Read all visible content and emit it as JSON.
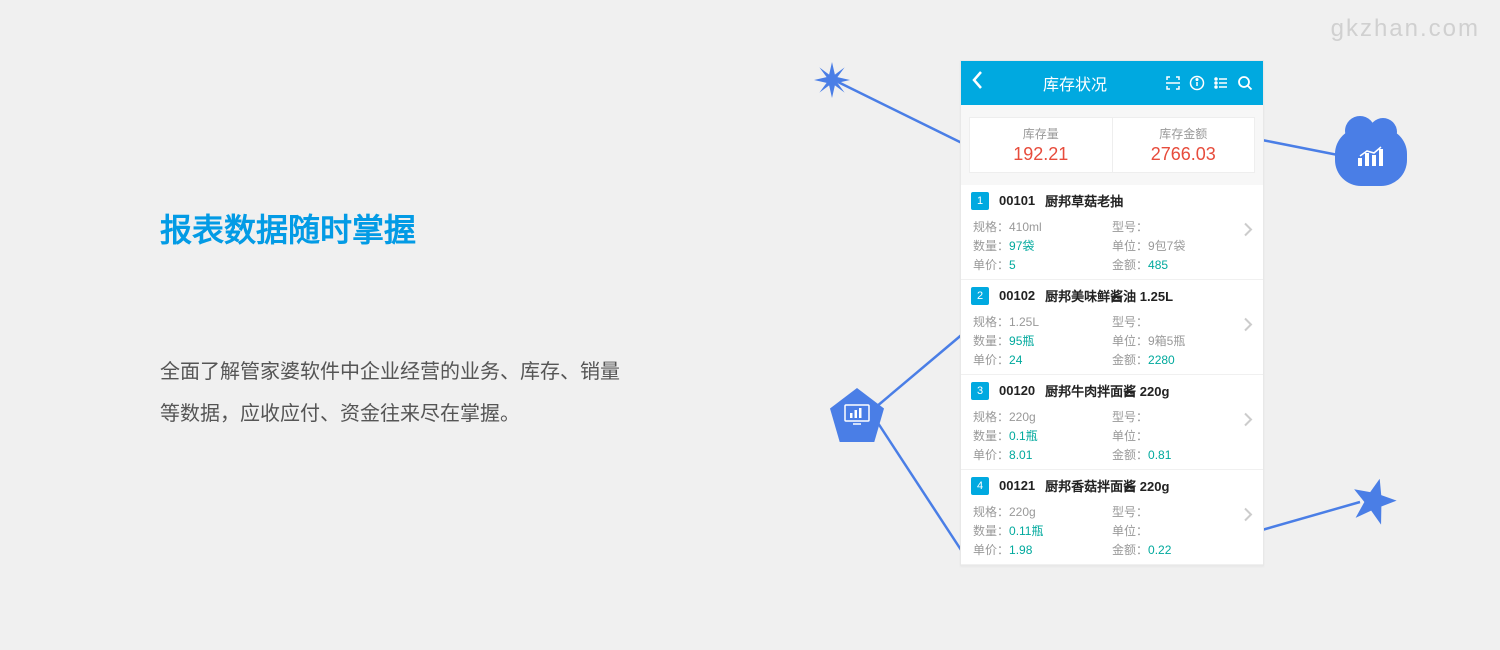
{
  "watermark": "gkzhan.com",
  "headline": "报表数据随时掌握",
  "description": "全面了解管家婆软件中企业经营的业务、库存、销量等数据，应收应付、资金往来尽在掌握。",
  "colors": {
    "accent_blue": "#00a9e0",
    "deco_blue": "#4a7ee6",
    "value_red": "#e74c3c",
    "value_teal": "#00a99d",
    "bg": "#f0f0f0"
  },
  "phone": {
    "title": "库存状况",
    "header_icons": [
      "scan-icon",
      "info-icon",
      "list-icon",
      "search-icon"
    ],
    "stats": [
      {
        "label": "库存量",
        "value": "192.21"
      },
      {
        "label": "库存金额",
        "value": "2766.03"
      }
    ],
    "field_labels": {
      "spec": "规格：",
      "model": "型号：",
      "qty": "数量：",
      "unit": "单位：",
      "price": "单价：",
      "amount": "金额："
    },
    "items": [
      {
        "num": "1",
        "code": "00101",
        "name": "厨邦草菇老抽",
        "spec": "410ml",
        "model": "",
        "qty": "97袋",
        "unit": "9包7袋",
        "price": "5",
        "amount": "485"
      },
      {
        "num": "2",
        "code": "00102",
        "name": "厨邦美味鲜酱油 1.25L",
        "spec": "1.25L",
        "model": "",
        "qty": "95瓶",
        "unit": "9箱5瓶",
        "price": "24",
        "amount": "2280"
      },
      {
        "num": "3",
        "code": "00120",
        "name": "厨邦牛肉拌面酱 220g",
        "spec": "220g",
        "model": "",
        "qty": "0.1瓶",
        "unit": "",
        "price": "8.01",
        "amount": "0.81"
      },
      {
        "num": "4",
        "code": "00121",
        "name": "厨邦香菇拌面酱 220g",
        "spec": "220g",
        "model": "",
        "qty": "0.11瓶",
        "unit": "",
        "price": "1.98",
        "amount": "0.22"
      }
    ]
  }
}
